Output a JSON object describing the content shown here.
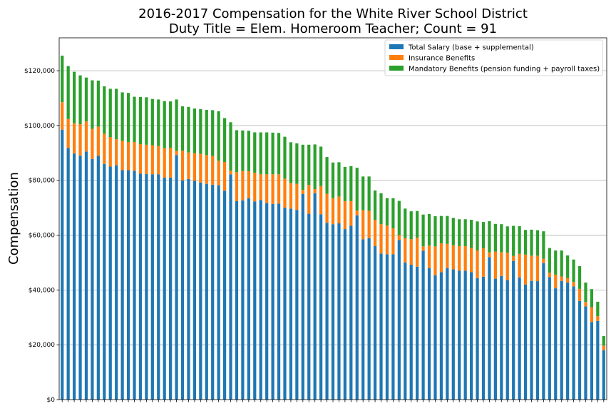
{
  "chart_data": {
    "type": "bar",
    "stacked": true,
    "title": "2016-2017 Compensation for the White River School District",
    "subtitle": "Duty Title = Elem. Homeroom Teacher; Count = 91",
    "xlabel": "",
    "ylabel": "Compensation",
    "ylim": [
      0,
      132000
    ],
    "yticks": [
      0,
      20000,
      40000,
      60000,
      80000,
      100000,
      120000
    ],
    "ytick_labels": [
      "$0",
      "$20,000",
      "$40,000",
      "$60,000",
      "$80,000",
      "$100,000",
      "$120,000"
    ],
    "grid": "horizontal",
    "legend_position": "top-right",
    "series": [
      {
        "name": "Total Salary (base + supplemental)",
        "color": "#1f77b4",
        "values": [
          98500,
          91800,
          89800,
          89000,
          90500,
          87800,
          89000,
          86000,
          85000,
          85500,
          83700,
          83700,
          83500,
          82400,
          82300,
          82200,
          82200,
          81000,
          81000,
          89200,
          80000,
          80500,
          79800,
          79200,
          78700,
          78400,
          78200,
          76200,
          82200,
          72400,
          72700,
          73500,
          72300,
          72800,
          71700,
          71400,
          71500,
          70000,
          69700,
          69200,
          75000,
          67800,
          75300,
          67600,
          64500,
          64000,
          64300,
          62200,
          63400,
          67200,
          58500,
          58900,
          56000,
          53300,
          53000,
          53000,
          58200,
          50000,
          49200,
          48500,
          54300,
          48000,
          45400,
          46500,
          48000,
          47500,
          47000,
          47000,
          46500,
          44300,
          44800,
          52000,
          44100,
          45100,
          43600,
          50600,
          44600,
          42000,
          43300,
          43200,
          49800,
          44700,
          40600,
          43300,
          42700,
          41300,
          36000,
          34000,
          28300,
          28700,
          18000
        ]
      },
      {
        "name": "Insurance Benefits",
        "color": "#ff7f0e",
        "values": [
          10000,
          10600,
          11000,
          11500,
          11000,
          11000,
          10600,
          11000,
          10800,
          9500,
          10700,
          10300,
          10500,
          10800,
          10700,
          10600,
          10300,
          10800,
          10900,
          1500,
          10800,
          9700,
          10100,
          10500,
          10500,
          10500,
          9000,
          10500,
          1300,
          10600,
          10700,
          9800,
          10500,
          9500,
          10500,
          10800,
          10700,
          10600,
          9300,
          9500,
          1500,
          10500,
          1500,
          10300,
          10600,
          9500,
          9800,
          10200,
          9000,
          1800,
          10600,
          10000,
          9600,
          10700,
          10500,
          9500,
          1800,
          8900,
          9300,
          10600,
          1600,
          8200,
          10500,
          10500,
          8800,
          8800,
          9000,
          9000,
          8800,
          10100,
          10400,
          1700,
          9900,
          8700,
          10000,
          1800,
          8600,
          10900,
          9200,
          9300,
          1600,
          1600,
          5000,
          1600,
          1600,
          1600,
          4400,
          1600,
          5400,
          1700,
          1700
        ]
      },
      {
        "name": "Mandatory Benefits (pension funding + payroll taxes)",
        "color": "#2ca02c",
        "values": [
          17000,
          19300,
          18800,
          17800,
          16000,
          17700,
          16800,
          17300,
          17600,
          18400,
          17700,
          17900,
          16500,
          17200,
          17300,
          16900,
          17000,
          17100,
          16900,
          18800,
          16200,
          16600,
          16300,
          16300,
          16500,
          16700,
          18000,
          16000,
          17700,
          15300,
          14800,
          14800,
          14700,
          15200,
          15300,
          15200,
          15100,
          15300,
          14900,
          14800,
          16500,
          14700,
          16300,
          14400,
          13400,
          13000,
          12500,
          12500,
          12800,
          15600,
          12300,
          12500,
          10700,
          11300,
          10000,
          11000,
          12500,
          10800,
          10200,
          9700,
          11600,
          11500,
          11000,
          10000,
          10200,
          10000,
          9800,
          9800,
          10300,
          10600,
          9600,
          11400,
          10100,
          10200,
          9600,
          11000,
          10100,
          9000,
          9500,
          9300,
          10000,
          9000,
          8800,
          9500,
          8300,
          8200,
          8300,
          7100,
          6600,
          5300,
          3500
        ]
      }
    ]
  }
}
